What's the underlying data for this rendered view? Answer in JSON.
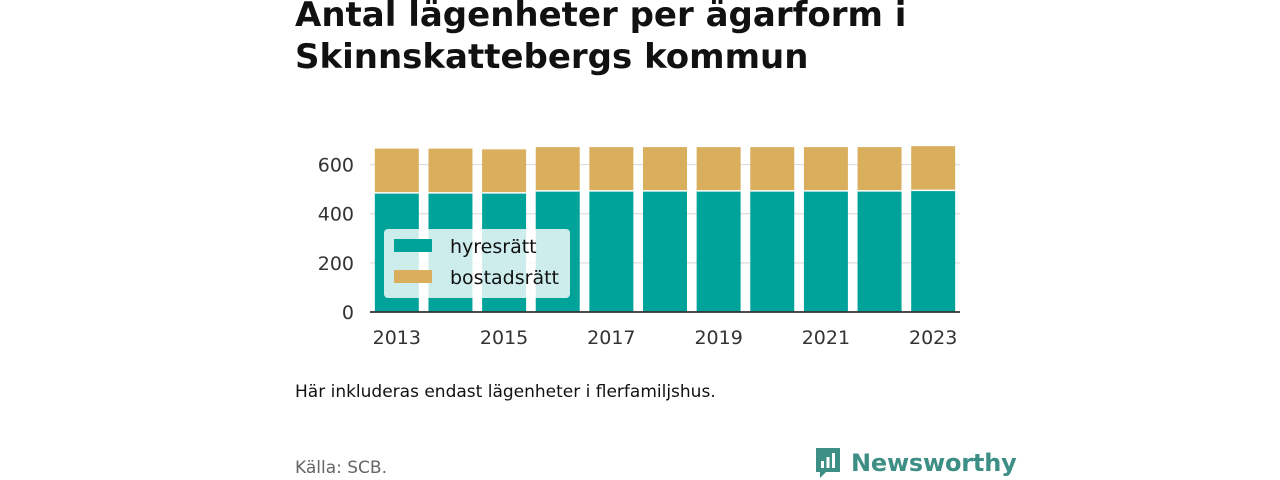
{
  "title": "Antal lägenheter per ägarform i Skinnskattebergs kommun",
  "note": "Här inkluderas endast lägenheter i flerfamiljshus.",
  "source": "Källa: SCB.",
  "brand": {
    "name": "Newsworthy",
    "icon": "newsworthy-logo-icon",
    "color": "#3d8f86"
  },
  "chart_data": {
    "type": "bar",
    "stacked": true,
    "x": [
      2013,
      2014,
      2015,
      2016,
      2017,
      2018,
      2019,
      2020,
      2021,
      2022,
      2023
    ],
    "x_tick_labels": [
      "2013",
      "2015",
      "2017",
      "2019",
      "2021",
      "2023"
    ],
    "series": [
      {
        "name": "hyresrätt",
        "color": "#00a39a",
        "values": [
          485,
          485,
          485,
          493,
          493,
          493,
          493,
          493,
          493,
          493,
          495
        ]
      },
      {
        "name": "bostadsrätt",
        "color": "#d9ae5c",
        "values": [
          180,
          180,
          177,
          178,
          178,
          178,
          178,
          178,
          178,
          178,
          180
        ]
      }
    ],
    "ylim": [
      0,
      700
    ],
    "y_ticks": [
      0,
      200,
      400,
      600
    ],
    "y_tick_labels": [
      "0",
      "200",
      "400",
      "600"
    ],
    "grid": true,
    "legend_position": "bottom-left"
  }
}
